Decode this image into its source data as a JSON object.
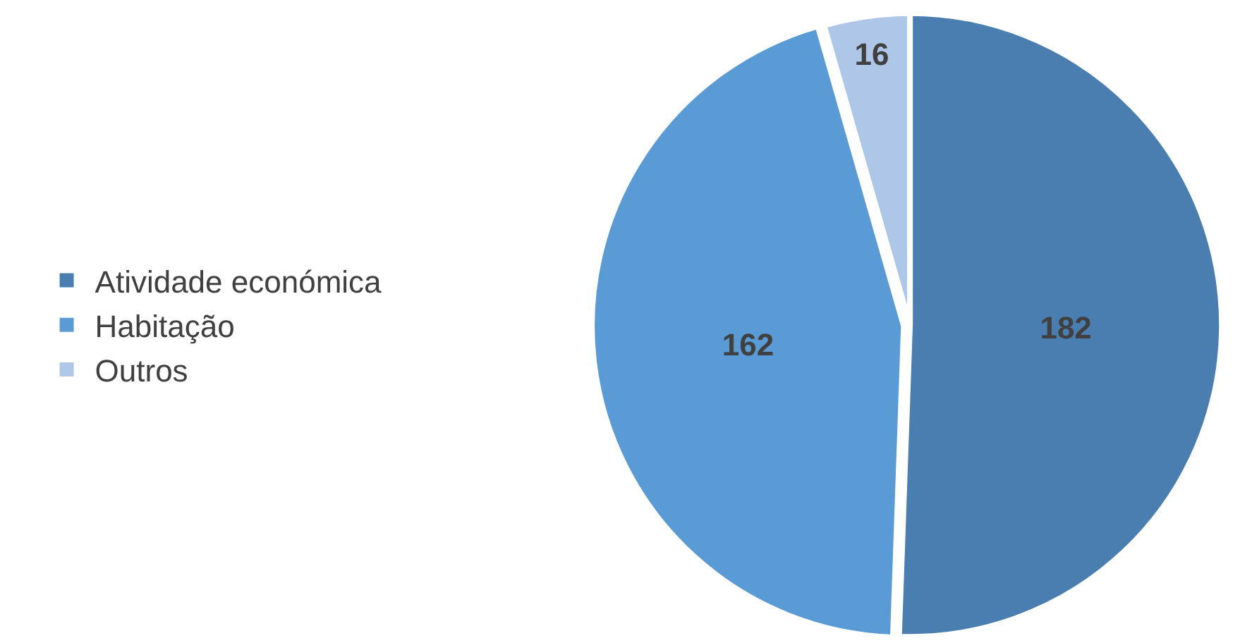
{
  "chart_data": {
    "type": "pie",
    "categories": [
      "Atividade económica",
      "Habitação",
      "Outros"
    ],
    "values": [
      182,
      162,
      16
    ],
    "colors": [
      "#4a7eb0",
      "#5b9bd5",
      "#aec6e8"
    ],
    "data_labels": true,
    "legend": "left"
  }
}
